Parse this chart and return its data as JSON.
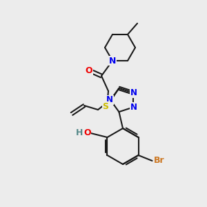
{
  "background_color": "#ececec",
  "bond_color": "#1a1a1a",
  "atom_colors": {
    "N": "#0000ee",
    "O": "#ee0000",
    "S": "#ccbb00",
    "Br": "#cc7722",
    "H": "#558888",
    "C": "#1a1a1a"
  },
  "figsize": [
    3.0,
    3.0
  ],
  "dpi": 100,
  "lw": 1.5,
  "fs": 8.5
}
